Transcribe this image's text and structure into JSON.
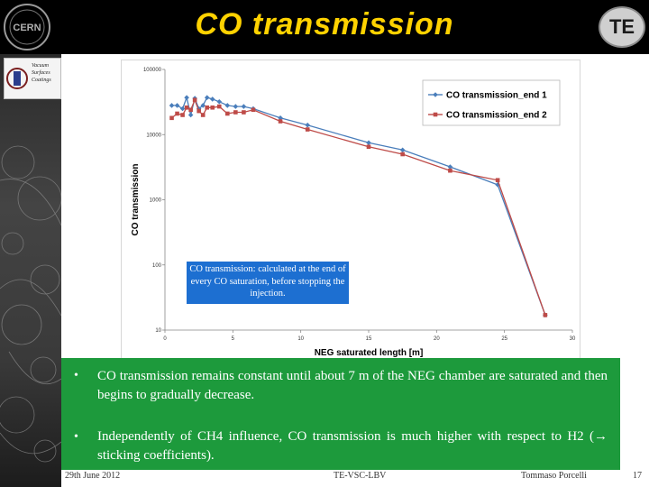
{
  "header": {
    "title": "CO transmission",
    "te_logo": "TE"
  },
  "sidebar": {
    "badge_lines": [
      "Vacuum",
      "Surfaces",
      "Coatings"
    ]
  },
  "chart_data": {
    "type": "line",
    "xlabel": "NEG saturated length [m]",
    "ylabel": "CO transmission",
    "xlim": [
      0,
      30
    ],
    "ylim": [
      10,
      100000
    ],
    "yscale": "log",
    "x_ticks": [
      "0",
      "5",
      "10",
      "15",
      "20",
      "25",
      "30"
    ],
    "y_ticks": [
      "10",
      "100",
      "1000",
      "10000",
      "100000"
    ],
    "legend_position": "top-right",
    "grid": false,
    "series": [
      {
        "name": "CO transmission_end 1",
        "color": "#4a7ebb",
        "marker": "diamond",
        "x": [
          0.5,
          0.9,
          1.3,
          1.6,
          1.9,
          2.2,
          2.5,
          2.8,
          3.1,
          3.5,
          4.0,
          4.6,
          5.2,
          5.8,
          6.5,
          8.5,
          10.5,
          15.0,
          17.5,
          21.0,
          24.5,
          28.0
        ],
        "y": [
          28000,
          28000,
          25000,
          37000,
          20000,
          36000,
          25000,
          28000,
          37000,
          35000,
          32000,
          28000,
          27000,
          27000,
          25000,
          18000,
          14000,
          7500,
          5800,
          3200,
          1700,
          17
        ]
      },
      {
        "name": "CO transmission_end 2",
        "color": "#be4b48",
        "marker": "square",
        "x": [
          0.5,
          0.9,
          1.3,
          1.6,
          1.9,
          2.2,
          2.5,
          2.8,
          3.1,
          3.5,
          4.0,
          4.6,
          5.2,
          5.8,
          6.5,
          8.5,
          10.5,
          15.0,
          17.5,
          21.0,
          24.5,
          28.0
        ],
        "y": [
          18000,
          21000,
          20000,
          26000,
          24000,
          34000,
          23000,
          20000,
          26000,
          26000,
          27000,
          21000,
          22000,
          22000,
          24000,
          16000,
          12000,
          6500,
          5000,
          2800,
          2000,
          17
        ]
      }
    ]
  },
  "annotation": "CO transmission: calculated at the end of every CO saturation, before stopping the injection.",
  "bullets": [
    {
      "symbol": "•",
      "text": "CO transmission remains constant until about 7 m of the NEG chamber are saturated and then begins to gradually decrease."
    },
    {
      "symbol": "•",
      "text": "Independently of CH4 influence, CO transmission is much higher with respect to H2 (→ sticking coefficients)."
    }
  ],
  "footer": {
    "date": "29th June 2012",
    "group": "TE-VSC-LBV",
    "author": "Tommaso Porcelli",
    "page": "17"
  }
}
